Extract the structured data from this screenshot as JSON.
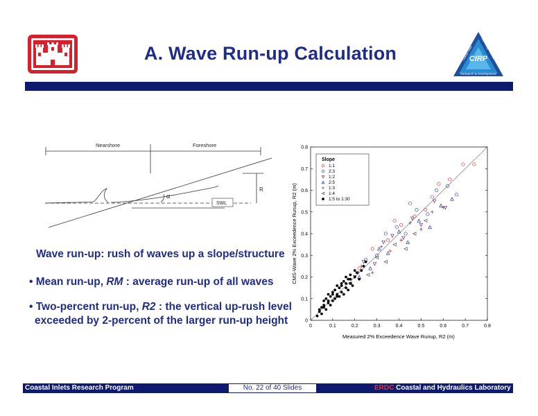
{
  "slide": {
    "title": "A. Wave Run-up Calculation",
    "colors": {
      "navy": "#0e1a6e",
      "title_blue": "#1f2c8a",
      "red": "#d8202c"
    }
  },
  "logos": {
    "left": {
      "icon": "castle-icon"
    },
    "right": {
      "icon": "cirp-triangle-logo",
      "center_text": "CIRP",
      "edge_text_1": "Coastal Inlets",
      "edge_text_2": "Technology Transfer",
      "bottom_text": "Research & Development"
    }
  },
  "diagram": {
    "nearshore": "Nearshore",
    "foreshore": "Foreshore",
    "r": "R",
    "alpha": "α",
    "swl": "SWL"
  },
  "bullets": {
    "b1": "Wave run-up: rush of waves up a slope/structure",
    "b2_pre": "• Mean run-up, ",
    "b2_em": "RM",
    "b2_post": " : average run-up of all waves",
    "b3_pre": "• Two-percent run-up, ",
    "b3_em": "R2",
    "b3_post": " : the vertical up-rush level",
    "b3_line2": "exceeded by 2-percent of the larger run-up height"
  },
  "footer": {
    "left": "Coastal Inlets Research Program",
    "middle": "No. 22 of 40 Slides",
    "right_erdc": "ERDC",
    "right_rest": " Coastal and Hydraulics Laboratory"
  },
  "chart_data": {
    "type": "scatter",
    "xlabel": "Measured 2% Exceedence Wave Runup, R2 (m)",
    "ylabel": "CMS-Wave 2% Exceedence Runup, R2 (m)",
    "xlim": [
      0,
      0.8
    ],
    "ylim": [
      0,
      0.8
    ],
    "xticks": [
      "0",
      "0.1",
      "0.2",
      "0.3",
      "0.4",
      "0.5",
      "0.6",
      "0.7",
      "0.8"
    ],
    "yticks": [
      "0",
      "0.1",
      "0.2",
      "0.3",
      "0.4",
      "0.5",
      "0.6",
      "0.7",
      "0.8"
    ],
    "legend_title": "Slope",
    "legend_position": "top-left",
    "reference_line": {
      "x": [
        0,
        0.8
      ],
      "y": [
        0,
        0.8
      ]
    },
    "series": [
      {
        "name": "1:1",
        "marker": "o",
        "color": "#cc3333",
        "x": [
          0.22,
          0.28,
          0.35,
          0.41,
          0.47,
          0.52,
          0.58,
          0.63,
          0.69,
          0.74,
          0.45,
          0.38,
          0.55
        ],
        "y": [
          0.24,
          0.33,
          0.37,
          0.44,
          0.48,
          0.51,
          0.63,
          0.65,
          0.72,
          0.72,
          0.54,
          0.46,
          0.57
        ]
      },
      {
        "name": "2:3",
        "marker": "o",
        "color": "#3344aa",
        "x": [
          0.25,
          0.3,
          0.34,
          0.39,
          0.43,
          0.48,
          0.53,
          0.57,
          0.62,
          0.66
        ],
        "y": [
          0.28,
          0.3,
          0.4,
          0.43,
          0.4,
          0.51,
          0.49,
          0.6,
          0.62,
          0.58
        ]
      },
      {
        "name": "1:2",
        "marker": "v",
        "color": "#7a2a7a",
        "x": [
          0.2,
          0.24,
          0.29,
          0.33,
          0.37,
          0.42,
          0.46,
          0.5,
          0.56,
          0.61
        ],
        "y": [
          0.2,
          0.27,
          0.26,
          0.36,
          0.39,
          0.38,
          0.47,
          0.44,
          0.55,
          0.52
        ]
      },
      {
        "name": "2:5",
        "marker": "^",
        "color": "#2233aa",
        "x": [
          0.22,
          0.27,
          0.31,
          0.35,
          0.4,
          0.44,
          0.49,
          0.54,
          0.59,
          0.64
        ],
        "y": [
          0.2,
          0.24,
          0.33,
          0.31,
          0.41,
          0.36,
          0.46,
          0.43,
          0.53,
          0.56
        ]
      },
      {
        "name": "1:3",
        "marker": "+",
        "color": "#993333",
        "x": [
          0.23,
          0.28,
          0.32,
          0.36,
          0.41,
          0.45,
          0.5,
          0.55,
          0.6
        ],
        "y": [
          0.25,
          0.22,
          0.34,
          0.32,
          0.37,
          0.45,
          0.42,
          0.5,
          0.52
        ]
      },
      {
        "name": "1:4",
        "marker": "<",
        "color": "#555555",
        "x": [
          0.18,
          0.21,
          0.26,
          0.3,
          0.34,
          0.38,
          0.43,
          0.47,
          0.52
        ],
        "y": [
          0.17,
          0.22,
          0.21,
          0.29,
          0.27,
          0.35,
          0.33,
          0.4,
          0.46
        ]
      },
      {
        "name": "1:5 to 1:30",
        "marker": "dot",
        "color": "#000000",
        "x": [
          0.03,
          0.04,
          0.05,
          0.05,
          0.06,
          0.06,
          0.07,
          0.07,
          0.08,
          0.08,
          0.09,
          0.09,
          0.1,
          0.1,
          0.11,
          0.11,
          0.12,
          0.12,
          0.13,
          0.13,
          0.14,
          0.14,
          0.15,
          0.15,
          0.16,
          0.16,
          0.17,
          0.17,
          0.18,
          0.18,
          0.19,
          0.2,
          0.21,
          0.22,
          0.23,
          0.24,
          0.25,
          0.04,
          0.06,
          0.08,
          0.1,
          0.12,
          0.14,
          0.16,
          0.18,
          0.2
        ],
        "y": [
          0.02,
          0.05,
          0.03,
          0.06,
          0.07,
          0.09,
          0.05,
          0.1,
          0.08,
          0.12,
          0.07,
          0.11,
          0.09,
          0.13,
          0.1,
          0.14,
          0.12,
          0.16,
          0.11,
          0.15,
          0.13,
          0.17,
          0.12,
          0.18,
          0.15,
          0.2,
          0.14,
          0.19,
          0.17,
          0.21,
          0.16,
          0.2,
          0.22,
          0.19,
          0.23,
          0.25,
          0.27,
          0.04,
          0.06,
          0.09,
          0.12,
          0.11,
          0.16,
          0.17,
          0.19,
          0.23
        ]
      }
    ]
  }
}
